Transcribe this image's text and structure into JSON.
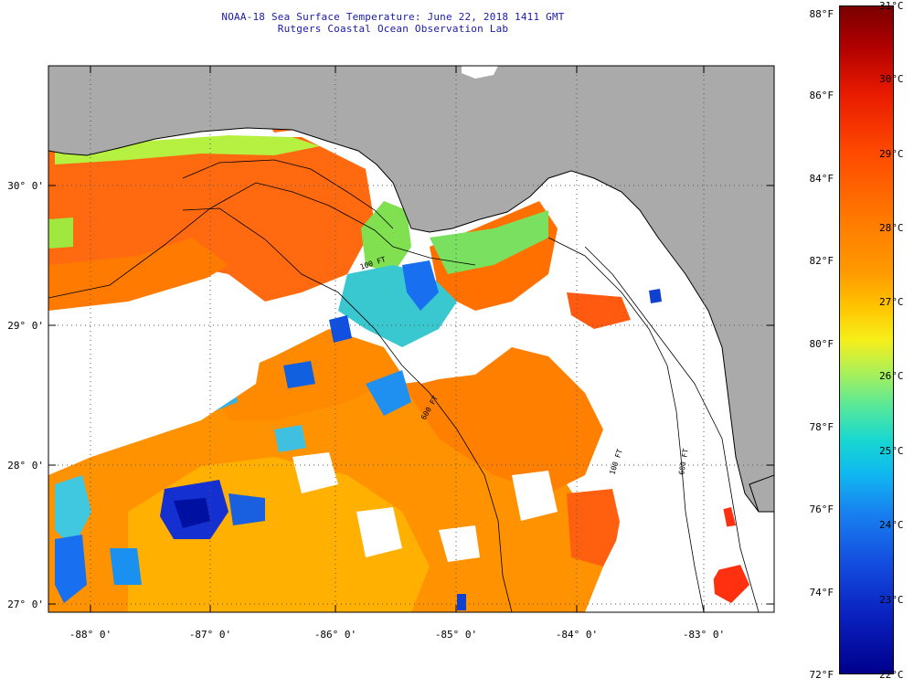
{
  "title": {
    "line1": "NOAA-18 Sea Surface Temperature:  June 22, 2018 1411 GMT",
    "line2": "Rutgers Coastal Ocean Observation Lab"
  },
  "map": {
    "latitude_labels": [
      "30° 0'",
      "29° 0'",
      "28° 0'",
      "27° 0'"
    ],
    "longitude_labels": [
      "-88° 0'",
      "-87° 0'",
      "-86° 0'",
      "-85° 0'",
      "-84° 0'",
      "-83° 0'"
    ],
    "contour_labels": [
      "100 FT",
      "600 FT",
      "100 FT",
      "600 FT"
    ]
  },
  "colorbar": {
    "fahrenheit_labels": [
      "88°F",
      "86°F",
      "84°F",
      "82°F",
      "80°F",
      "78°F",
      "76°F",
      "74°F",
      "72°F"
    ],
    "celsius_labels": [
      "31°C",
      "30°C",
      "29°C",
      "28°C",
      "27°C",
      "26°C",
      "25°C",
      "24°C",
      "23°C",
      "22°C"
    ]
  },
  "colors": {
    "land": "#aaaaaa",
    "cloud": "#ffffff",
    "title_text": "#1a1aa8",
    "warm": "#ff6a00",
    "hot": "#ff3000",
    "cool": "#1060f0"
  }
}
